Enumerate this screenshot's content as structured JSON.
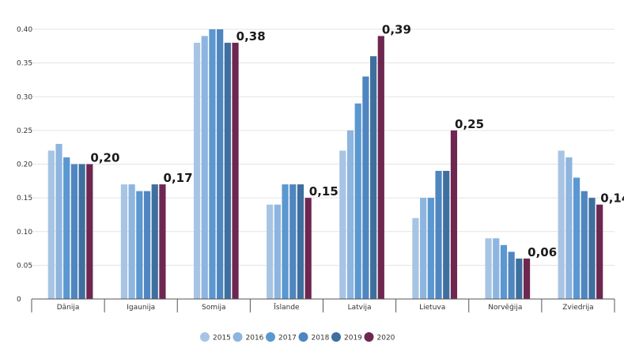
{
  "chart_data": {
    "type": "bar",
    "categories": [
      "Dānija",
      "Igaunija",
      "Somija",
      "Īslande",
      "Latvija",
      "Lietuva",
      "Norvēģija",
      "Zviedrija"
    ],
    "series": [
      {
        "name": "2015",
        "color": "#a7c4e4",
        "values": [
          0.22,
          0.17,
          0.38,
          0.14,
          0.22,
          0.12,
          0.09,
          0.22
        ]
      },
      {
        "name": "2016",
        "color": "#8db5df",
        "values": [
          0.23,
          0.17,
          0.39,
          0.14,
          0.25,
          0.15,
          0.09,
          0.21
        ]
      },
      {
        "name": "2017",
        "color": "#5b97d0",
        "values": [
          0.21,
          0.16,
          0.4,
          0.17,
          0.29,
          0.15,
          0.08,
          0.18
        ]
      },
      {
        "name": "2018",
        "color": "#4f86c0",
        "values": [
          0.2,
          0.16,
          0.4,
          0.17,
          0.33,
          0.19,
          0.07,
          0.16
        ]
      },
      {
        "name": "2019",
        "color": "#3e6f9f",
        "values": [
          0.2,
          0.17,
          0.38,
          0.17,
          0.36,
          0.19,
          0.06,
          0.15
        ]
      },
      {
        "name": "2020",
        "color": "#6d2750",
        "values": [
          0.2,
          0.17,
          0.38,
          0.15,
          0.39,
          0.25,
          0.06,
          0.14
        ]
      }
    ],
    "data_labels": [
      "0,20",
      "0,17",
      "0,38",
      "0,15",
      "0,39",
      "0,25",
      "0,06",
      "0,14"
    ],
    "y_ticks": [
      "0",
      "0.05",
      "0.10",
      "0.15",
      "0.20",
      "0.25",
      "0.30",
      "0.35",
      "0.40"
    ],
    "ylim": [
      0,
      0.4
    ],
    "grid": true,
    "legend_position": "bottom"
  }
}
